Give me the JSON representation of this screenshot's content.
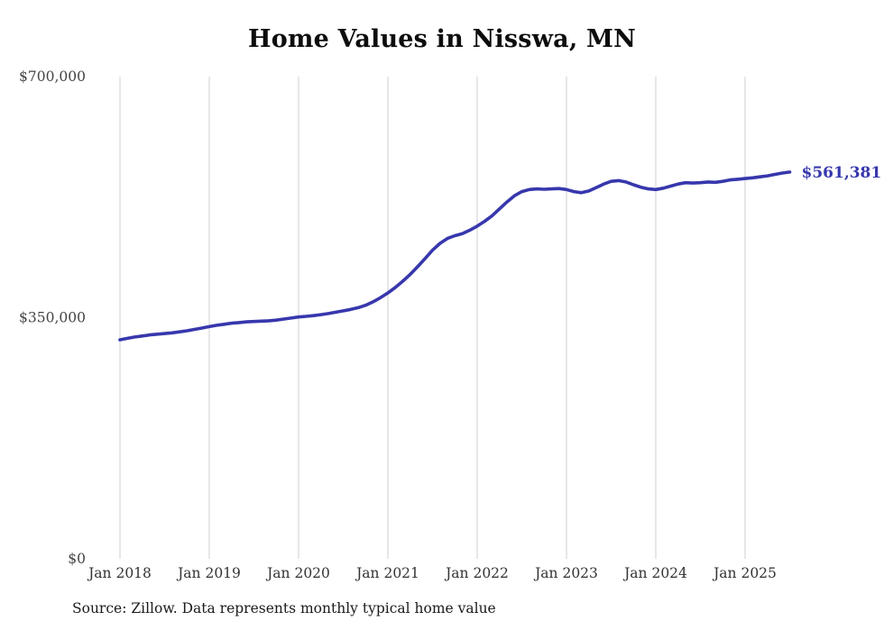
{
  "chart": {
    "title": "Home Values in Nisswa, MN",
    "end_label": "$561,381",
    "source_note": "Source: Zillow. Data represents monthly typical home value",
    "line_color": "#3737ad",
    "grid_color": "#cfcfcf",
    "axis_label_color": "#444444"
  },
  "chart_data": {
    "type": "line",
    "title": "Home Values in Nisswa, MN",
    "xlabel": "",
    "ylabel": "",
    "ylim": [
      0,
      700000
    ],
    "grid": "vertical-only",
    "x_tick_labels": [
      "Jan 2018",
      "Jan 2019",
      "Jan 2020",
      "Jan 2021",
      "Jan 2022",
      "Jan 2023",
      "Jan 2024",
      "Jan 2025"
    ],
    "y_ticks": [
      {
        "label": "$0",
        "value": 0
      },
      {
        "label": "$350,000",
        "value": 350000
      },
      {
        "label": "$700,000",
        "value": 700000
      }
    ],
    "series": [
      {
        "name": "Typical home value",
        "x_start": "2018-01",
        "frequency": "monthly",
        "values": [
          318000,
          320000,
          322000,
          323500,
          325000,
          326000,
          327000,
          328000,
          329500,
          331000,
          333000,
          335000,
          337000,
          339000,
          340500,
          342000,
          343000,
          344000,
          344500,
          345000,
          345500,
          346500,
          348000,
          349500,
          351000,
          352000,
          353000,
          354500,
          356000,
          358000,
          360000,
          362000,
          364500,
          368000,
          373000,
          379000,
          386000,
          394000,
          403000,
          413000,
          424000,
          436000,
          448000,
          458000,
          465000,
          469000,
          472000,
          477000,
          483000,
          490000,
          498000,
          508000,
          518000,
          527000,
          533000,
          536000,
          537000,
          536500,
          537000,
          537500,
          536000,
          533000,
          531500,
          534000,
          539000,
          544000,
          548000,
          549000,
          547000,
          543000,
          539500,
          537000,
          536000,
          538000,
          541000,
          544000,
          546000,
          545500,
          546000,
          547000,
          546500,
          548000,
          550000,
          551000,
          552000,
          553000,
          554500,
          556000,
          558000,
          560000,
          561381
        ]
      }
    ],
    "annotation": {
      "text": "$561,381",
      "value": 561381,
      "position": "line-end"
    },
    "legend": "none",
    "source": "Source: Zillow. Data represents monthly typical home value"
  }
}
